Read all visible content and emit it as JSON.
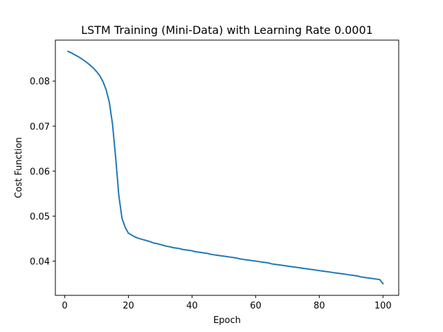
{
  "chart_data": {
    "type": "line",
    "title": "LSTM Training (Mini-Data) with Learning Rate 0.0001",
    "xlabel": "Epoch",
    "ylabel": "Cost Function",
    "xlim": [
      -2.95,
      104.95
    ],
    "ylim": [
      0.0324,
      0.0891
    ],
    "x_ticks": [
      0,
      20,
      40,
      60,
      80,
      100
    ],
    "x_tick_labels": [
      "0",
      "20",
      "40",
      "60",
      "80",
      "100"
    ],
    "y_ticks": [
      0.04,
      0.05,
      0.06,
      0.07,
      0.08
    ],
    "y_tick_labels": [
      "0.04",
      "0.05",
      "0.06",
      "0.07",
      "0.08"
    ],
    "grid": false,
    "series": [
      {
        "color": "#1f77b4",
        "x": [
          1,
          2,
          3,
          4,
          5,
          6,
          7,
          8,
          9,
          10,
          11,
          12,
          13,
          14,
          15,
          16,
          17,
          18,
          19,
          20,
          21,
          22,
          23,
          24,
          25,
          26,
          27,
          28,
          29,
          30,
          31,
          32,
          33,
          34,
          35,
          36,
          37,
          38,
          39,
          40,
          41,
          42,
          43,
          44,
          45,
          46,
          47,
          48,
          49,
          50,
          51,
          52,
          53,
          54,
          55,
          56,
          57,
          58,
          59,
          60,
          61,
          62,
          63,
          64,
          65,
          66,
          67,
          68,
          69,
          70,
          71,
          72,
          73,
          74,
          75,
          76,
          77,
          78,
          79,
          80,
          81,
          82,
          83,
          84,
          85,
          86,
          87,
          88,
          89,
          90,
          91,
          92,
          93,
          94,
          95,
          96,
          97,
          98,
          99,
          100
        ],
        "y": [
          0.0866,
          0.0863,
          0.0859,
          0.0855,
          0.0851,
          0.0846,
          0.0841,
          0.0835,
          0.0829,
          0.0821,
          0.0812,
          0.0799,
          0.0781,
          0.0753,
          0.0705,
          0.063,
          0.0545,
          0.0495,
          0.0475,
          0.0462,
          0.0458,
          0.0454,
          0.0451,
          0.0449,
          0.0447,
          0.0445,
          0.0443,
          0.044,
          0.0439,
          0.0437,
          0.0435,
          0.0433,
          0.0432,
          0.043,
          0.0429,
          0.0428,
          0.0426,
          0.0425,
          0.0424,
          0.0423,
          0.0421,
          0.042,
          0.0419,
          0.0418,
          0.0417,
          0.0415,
          0.0414,
          0.0413,
          0.0412,
          0.0411,
          0.041,
          0.0409,
          0.0408,
          0.0407,
          0.0405,
          0.0404,
          0.0403,
          0.0402,
          0.0401,
          0.04,
          0.0399,
          0.0398,
          0.0397,
          0.0396,
          0.0394,
          0.0393,
          0.0392,
          0.0391,
          0.039,
          0.0389,
          0.0388,
          0.0387,
          0.0386,
          0.0385,
          0.0384,
          0.0383,
          0.0382,
          0.0381,
          0.038,
          0.0379,
          0.0378,
          0.0377,
          0.0376,
          0.0375,
          0.0374,
          0.0373,
          0.0372,
          0.0371,
          0.037,
          0.0369,
          0.0368,
          0.0367,
          0.0365,
          0.0364,
          0.0363,
          0.0362,
          0.0361,
          0.036,
          0.0359,
          0.035
        ]
      }
    ]
  }
}
